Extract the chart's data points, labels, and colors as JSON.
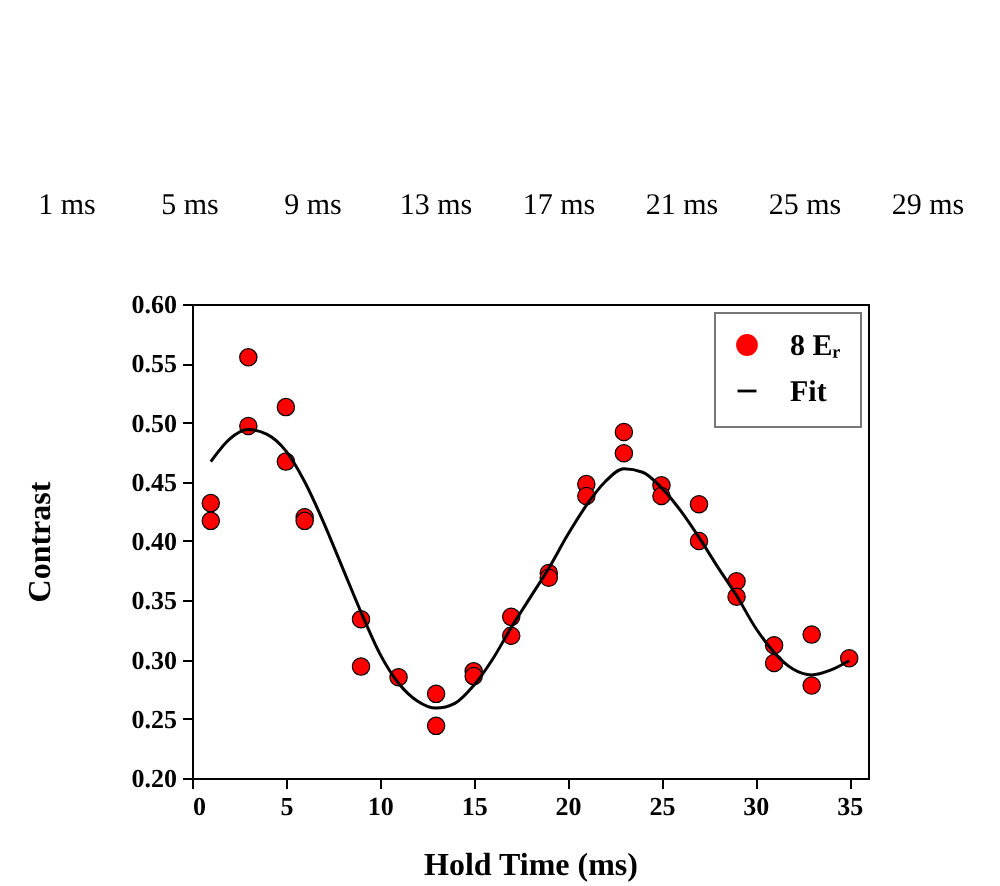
{
  "chart_data": {
    "type": "scatter",
    "xlabel": "Hold Time (ms)",
    "ylabel": "Contrast",
    "xlim": [
      0,
      36
    ],
    "xticks": [
      0,
      5,
      10,
      15,
      20,
      25,
      30,
      35
    ],
    "ylim": [
      0.2,
      0.6
    ],
    "yticks": [
      {
        "value": 0.2,
        "label": "0.20"
      },
      0.25,
      {
        "value": 0.3,
        "label": "0.30"
      },
      0.35,
      {
        "value": 0.4,
        "label": "0.40"
      },
      0.45,
      {
        "value": 0.5,
        "label": "0.50"
      },
      0.55,
      {
        "value": 0.6,
        "label": "0.60"
      }
    ],
    "grid": false,
    "legend": "top right",
    "series": [
      {
        "name": "8 Eᵣ",
        "color": "#ff0000",
        "marker": "circle",
        "x": [
          1,
          1,
          3,
          3,
          5,
          5,
          6,
          6,
          9,
          9,
          11,
          13,
          13,
          15,
          15,
          17,
          17,
          19,
          19,
          21,
          21,
          23,
          23,
          25,
          25,
          27,
          27,
          29,
          29,
          31,
          31,
          33,
          33,
          35
        ],
        "values": [
          0.432,
          0.417,
          0.555,
          0.497,
          0.513,
          0.467,
          0.42,
          0.417,
          0.334,
          0.294,
          0.285,
          0.271,
          0.244,
          0.29,
          0.286,
          0.336,
          0.32,
          0.373,
          0.369,
          0.448,
          0.438,
          0.492,
          0.474,
          0.447,
          0.438,
          0.431,
          0.4,
          0.366,
          0.353,
          0.312,
          0.297,
          0.321,
          0.278,
          0.301
        ]
      },
      {
        "name": "Fit",
        "type": "line",
        "color": "#000000",
        "line_style": "solid",
        "x": [
          1,
          2,
          3,
          4,
          5,
          6,
          7,
          8,
          9,
          10,
          11,
          12,
          13,
          14,
          15,
          16,
          17,
          18,
          19,
          20,
          21,
          22,
          23,
          24,
          25,
          26,
          27,
          28,
          29,
          30,
          31,
          32,
          33,
          34,
          35
        ],
        "values": [
          0.467,
          0.486,
          0.494,
          0.49,
          0.476,
          0.45,
          0.416,
          0.378,
          0.34,
          0.305,
          0.28,
          0.265,
          0.259,
          0.263,
          0.278,
          0.3,
          0.327,
          0.352,
          0.377,
          0.405,
          0.43,
          0.45,
          0.461,
          0.458,
          0.445,
          0.426,
          0.403,
          0.378,
          0.354,
          0.327,
          0.306,
          0.292,
          0.287,
          0.291,
          0.299
        ]
      }
    ],
    "annotations": [
      "1 ms",
      "5 ms",
      "9 ms",
      "13 ms",
      "17 ms",
      "21 ms",
      "25 ms",
      "29 ms"
    ]
  }
}
